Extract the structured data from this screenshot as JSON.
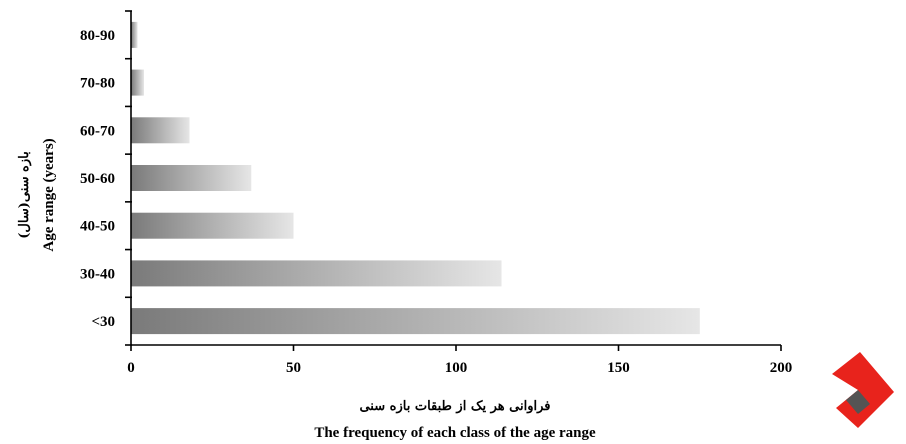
{
  "chart_data": {
    "type": "bar",
    "orientation": "horizontal",
    "categories": [
      "<30",
      "30-40",
      "40-50",
      "50-60",
      "60-70",
      "70-80",
      "80-90"
    ],
    "values": [
      175,
      114,
      50,
      37,
      18,
      4,
      2
    ],
    "xlim": [
      0,
      200
    ],
    "x_ticks": [
      "0",
      "50",
      "100",
      "150",
      "200"
    ],
    "xlabel_fa": "فراوانی هر یک از طبقات بازه سنی",
    "xlabel": "The frequency of each class of the age range",
    "ylabel_fa": "بازه سنی(سال)",
    "ylabel": "Age range (years)",
    "grid": false,
    "bar_fill": "gradient dark-to-light gray",
    "colors": {
      "bar_dark": "#7a7a7a",
      "bar_light": "#e6e6e6",
      "axis": "#000000"
    }
  },
  "watermark": {
    "shape": "red-gray logo mark",
    "colors": [
      "#e8231c",
      "#545454"
    ]
  }
}
